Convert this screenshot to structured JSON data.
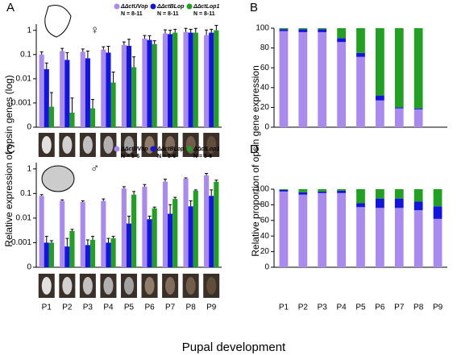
{
  "x_label": "Pupal development",
  "y_label_left": "Relative expression of opsin genes (log)",
  "y_label_right": "Relative proportion of opsin gene expression",
  "chart_data": [
    {
      "type": "bar",
      "label": "A",
      "symbol": "♀",
      "legend_note": "N = 8-11",
      "log_scale": true,
      "categories": [
        null,
        null,
        null,
        null,
        null,
        null,
        null,
        null,
        null
      ],
      "ylim": [
        0.0001,
        1.8
      ],
      "yticks": [
        {
          "value": 0.0001,
          "label": "0"
        },
        0.001,
        0.01,
        0.1,
        1
      ],
      "series": [
        {
          "name": "ΔΔctUVop",
          "color": "#a98bef",
          "values": [
            0.1,
            0.14,
            0.13,
            0.16,
            0.25,
            0.46,
            0.74,
            0.86,
            0.63
          ],
          "errors": [
            0.03,
            0.04,
            0.04,
            0.05,
            0.08,
            0.15,
            0.3,
            0.35,
            0.4
          ]
        },
        {
          "name": "ΔΔctBLop",
          "color": "#1414e0",
          "values": [
            0.025,
            0.06,
            0.07,
            0.12,
            0.23,
            0.4,
            0.7,
            0.8,
            0.8
          ],
          "errors": [
            0.02,
            0.06,
            0.07,
            0.1,
            0.2,
            0.2,
            0.3,
            0.3,
            0.3
          ]
        },
        {
          "name": "ΔΔctLop1",
          "color": "#22a022",
          "values": [
            0.0007,
            0.0004,
            0.0006,
            0.007,
            0.03,
            0.27,
            0.8,
            0.8,
            1.0
          ],
          "errors": [
            0.002,
            0.0012,
            0.0008,
            0.012,
            0.05,
            0.1,
            0.3,
            0.4,
            0.6
          ]
        }
      ]
    },
    {
      "type": "stacked_bar",
      "label": "B",
      "categories": [
        null,
        null,
        null,
        null,
        null,
        null,
        null,
        null,
        null
      ],
      "ylim": [
        0,
        100
      ],
      "yticks": [
        0,
        20,
        40,
        60,
        80,
        100
      ],
      "series": [
        {
          "name": "ΔΔctUVop",
          "color": "#a98bef",
          "values": [
            97,
            96,
            96,
            86,
            71,
            27,
            19,
            18,
            null
          ]
        },
        {
          "name": "ΔΔctBLop",
          "color": "#1414e0",
          "values": [
            2,
            3,
            3,
            4,
            4,
            5,
            1,
            1,
            null
          ]
        },
        {
          "name": "ΔΔctLop1",
          "color": "#22a022",
          "values": [
            1,
            1,
            1,
            10,
            25,
            68,
            80,
            81,
            null
          ]
        }
      ]
    },
    {
      "type": "bar",
      "label": "C",
      "symbol": "♂",
      "legend_note": "N = 5-6",
      "log_scale": true,
      "categories": [
        "P1",
        "P2",
        "P3",
        "P4",
        "P5",
        "P6",
        "P7",
        "P8",
        "P9"
      ],
      "ylim": [
        0.0001,
        1.8
      ],
      "yticks": [
        {
          "value": 0.0001,
          "label": "0"
        },
        0.001,
        0.01,
        0.1,
        1
      ],
      "series": [
        {
          "name": "ΔΔctUVop",
          "color": "#a98bef",
          "values": [
            0.08,
            0.05,
            0.045,
            0.05,
            0.16,
            0.19,
            0.3,
            0.4,
            0.55
          ],
          "errors": [
            0.01,
            0.005,
            0.005,
            0.01,
            0.03,
            0.04,
            0.08,
            0.03,
            0.1
          ]
        },
        {
          "name": "ΔΔctBLop",
          "color": "#1414e0",
          "values": [
            0.001,
            0.0007,
            0.0008,
            0.001,
            0.006,
            0.009,
            0.015,
            0.03,
            0.08
          ],
          "errors": [
            0.0008,
            0.0008,
            0.0005,
            0.0005,
            0.006,
            0.003,
            0.02,
            0.02,
            0.06
          ]
        },
        {
          "name": "ΔΔctLop1",
          "color": "#22a022",
          "values": [
            0.001,
            0.003,
            0.0013,
            0.0015,
            0.09,
            0.025,
            0.06,
            0.13,
            0.3
          ],
          "errors": [
            0.0002,
            0.0005,
            0.0005,
            0.0003,
            0.03,
            0.003,
            0.01,
            0.01,
            0.05
          ]
        }
      ]
    },
    {
      "type": "stacked_bar",
      "label": "D",
      "categories": [
        "P1",
        "P2",
        "P3",
        "P4",
        "P5",
        "P6",
        "P7",
        "P8",
        "P9"
      ],
      "ylim": [
        0,
        100
      ],
      "yticks": [
        0,
        20,
        40,
        60,
        80,
        100
      ],
      "series": [
        {
          "name": "ΔΔctUVop",
          "color": "#a98bef",
          "values": [
            97,
            93,
            95,
            95,
            77,
            76,
            76,
            73,
            62
          ]
        },
        {
          "name": "ΔΔctBLop",
          "color": "#1414e0",
          "values": [
            2,
            3,
            2,
            3,
            5,
            12,
            12,
            11,
            16
          ]
        },
        {
          "name": "ΔΔctLop1",
          "color": "#22a022",
          "values": [
            1,
            4,
            3,
            2,
            18,
            12,
            12,
            16,
            22
          ]
        }
      ]
    }
  ]
}
